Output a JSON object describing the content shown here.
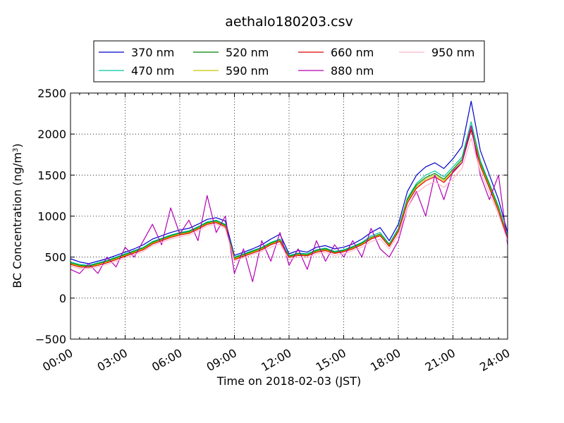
{
  "chart_data": {
    "type": "line",
    "title": "aethalo180203.csv",
    "xlabel": "Time on 2018-02-03 (JST)",
    "ylabel_main": "BC Concentration (ng/m",
    "ylabel_sup": "3",
    "ylabel_close": ")",
    "xlim_hours": [
      0,
      24
    ],
    "ylim": [
      -500,
      2500
    ],
    "xticks": [
      {
        "value": 0,
        "label": "00:00"
      },
      {
        "value": 3,
        "label": "03:00"
      },
      {
        "value": 6,
        "label": "06:00"
      },
      {
        "value": 9,
        "label": "09:00"
      },
      {
        "value": 12,
        "label": "12:00"
      },
      {
        "value": 15,
        "label": "15:00"
      },
      {
        "value": 18,
        "label": "18:00"
      },
      {
        "value": 21,
        "label": "21:00"
      },
      {
        "value": 24,
        "label": "24:00"
      }
    ],
    "yticks": [
      {
        "value": -500,
        "label": "−500"
      },
      {
        "value": 0,
        "label": "0"
      },
      {
        "value": 500,
        "label": "500"
      },
      {
        "value": 1000,
        "label": "1000"
      },
      {
        "value": 1500,
        "label": "1500"
      },
      {
        "value": 2000,
        "label": "2000"
      },
      {
        "value": 2500,
        "label": "2500"
      }
    ],
    "grid": true,
    "legend_position": "top",
    "x_hours": [
      0,
      0.5,
      1,
      1.5,
      2,
      2.5,
      3,
      3.5,
      4,
      4.5,
      5,
      5.5,
      6,
      6.5,
      7,
      7.5,
      8,
      8.5,
      9,
      9.5,
      10,
      10.5,
      11,
      11.5,
      12,
      12.5,
      13,
      13.5,
      14,
      14.5,
      15,
      15.5,
      16,
      16.5,
      17,
      17.5,
      18,
      18.5,
      19,
      19.5,
      20,
      20.5,
      21,
      21.5,
      22,
      22.5,
      23,
      23.5,
      24
    ],
    "series": [
      {
        "name": "370 nm",
        "color": "#0000cc",
        "values": [
          480,
          440,
          420,
          450,
          480,
          520,
          560,
          600,
          650,
          720,
          760,
          800,
          830,
          850,
          900,
          960,
          980,
          940,
          520,
          560,
          600,
          650,
          720,
          780,
          540,
          580,
          560,
          620,
          640,
          600,
          620,
          660,
          720,
          800,
          860,
          700,
          900,
          1300,
          1500,
          1600,
          1650,
          1580,
          1700,
          1850,
          2400,
          1800,
          1500,
          1200,
          800
        ]
      },
      {
        "name": "470 nm",
        "color": "#00c8a0",
        "values": [
          440,
          410,
          400,
          430,
          460,
          500,
          540,
          580,
          620,
          690,
          730,
          770,
          800,
          820,
          870,
          930,
          950,
          900,
          500,
          540,
          580,
          620,
          680,
          720,
          520,
          550,
          540,
          590,
          610,
          570,
          590,
          630,
          680,
          760,
          800,
          660,
          850,
          1220,
          1400,
          1500,
          1550,
          1480,
          1600,
          1720,
          2150,
          1680,
          1400,
          1120,
          760
        ]
      },
      {
        "name": "520 nm",
        "color": "#008000",
        "values": [
          430,
          400,
          390,
          420,
          450,
          490,
          530,
          570,
          610,
          680,
          720,
          760,
          790,
          810,
          860,
          920,
          940,
          890,
          490,
          530,
          570,
          610,
          670,
          710,
          510,
          540,
          530,
          580,
          600,
          560,
          580,
          620,
          670,
          740,
          780,
          650,
          830,
          1200,
          1380,
          1470,
          1520,
          1450,
          1570,
          1690,
          2100,
          1650,
          1380,
          1100,
          740
        ]
      },
      {
        "name": "590 nm",
        "color": "#c8c800",
        "values": [
          420,
          390,
          380,
          410,
          440,
          480,
          520,
          560,
          600,
          670,
          710,
          750,
          780,
          800,
          850,
          910,
          930,
          880,
          480,
          520,
          560,
          600,
          660,
          700,
          500,
          530,
          520,
          570,
          590,
          550,
          570,
          610,
          660,
          730,
          770,
          640,
          820,
          1180,
          1360,
          1450,
          1500,
          1430,
          1550,
          1670,
          2080,
          1630,
          1360,
          1080,
          730
        ]
      },
      {
        "name": "660 nm",
        "color": "#e00000",
        "values": [
          410,
          380,
          375,
          400,
          430,
          470,
          510,
          550,
          590,
          660,
          700,
          740,
          770,
          790,
          840,
          900,
          920,
          870,
          470,
          510,
          550,
          590,
          650,
          690,
          495,
          520,
          515,
          560,
          580,
          545,
          565,
          600,
          650,
          720,
          760,
          630,
          810,
          1160,
          1340,
          1430,
          1480,
          1410,
          1530,
          1650,
          2050,
          1610,
          1340,
          1060,
          720
        ]
      },
      {
        "name": "880 nm",
        "color": "#b400b4",
        "values": [
          350,
          300,
          420,
          300,
          500,
          380,
          620,
          500,
          700,
          900,
          650,
          1100,
          780,
          950,
          700,
          1250,
          800,
          1000,
          300,
          600,
          200,
          700,
          450,
          800,
          400,
          600,
          350,
          700,
          450,
          650,
          500,
          700,
          500,
          850,
          600,
          500,
          700,
          1100,
          1300,
          1000,
          1500,
          1200,
          1550,
          1650,
          2100,
          1500,
          1200,
          1500,
          650
        ]
      },
      {
        "name": "950 nm",
        "color": "#ffb4c8",
        "values": [
          390,
          360,
          360,
          380,
          410,
          450,
          490,
          530,
          570,
          640,
          680,
          720,
          750,
          770,
          820,
          880,
          900,
          850,
          450,
          490,
          530,
          570,
          620,
          660,
          470,
          500,
          490,
          540,
          560,
          520,
          540,
          580,
          620,
          690,
          720,
          600,
          770,
          1100,
          1280,
          1370,
          1420,
          1350,
          1460,
          1580,
          1950,
          1540,
          1280,
          1020,
          700
        ]
      }
    ]
  }
}
